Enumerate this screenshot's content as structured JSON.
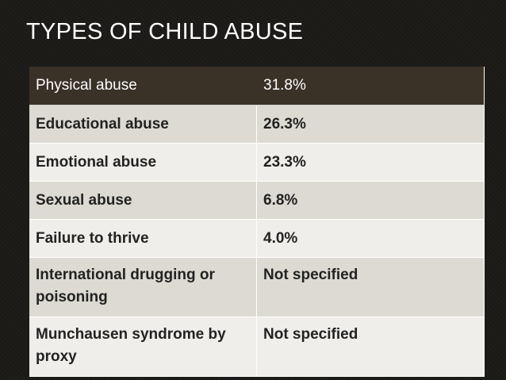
{
  "title": "TYPES OF CHILD ABUSE",
  "table": {
    "header": {
      "type": "Physical abuse",
      "value": "31.8%"
    },
    "rows": [
      {
        "type": "Educational abuse",
        "value": "26.3%"
      },
      {
        "type": "Emotional abuse",
        "value": "23.3%"
      },
      {
        "type": "Sexual abuse",
        "value": "6.8%"
      },
      {
        "type": "Failure to thrive",
        "value": "4.0%"
      },
      {
        "type": "International drugging or poisoning",
        "value": "Not specified"
      },
      {
        "type": "Munchausen syndrome by proxy",
        "value": "Not specified"
      }
    ]
  }
}
